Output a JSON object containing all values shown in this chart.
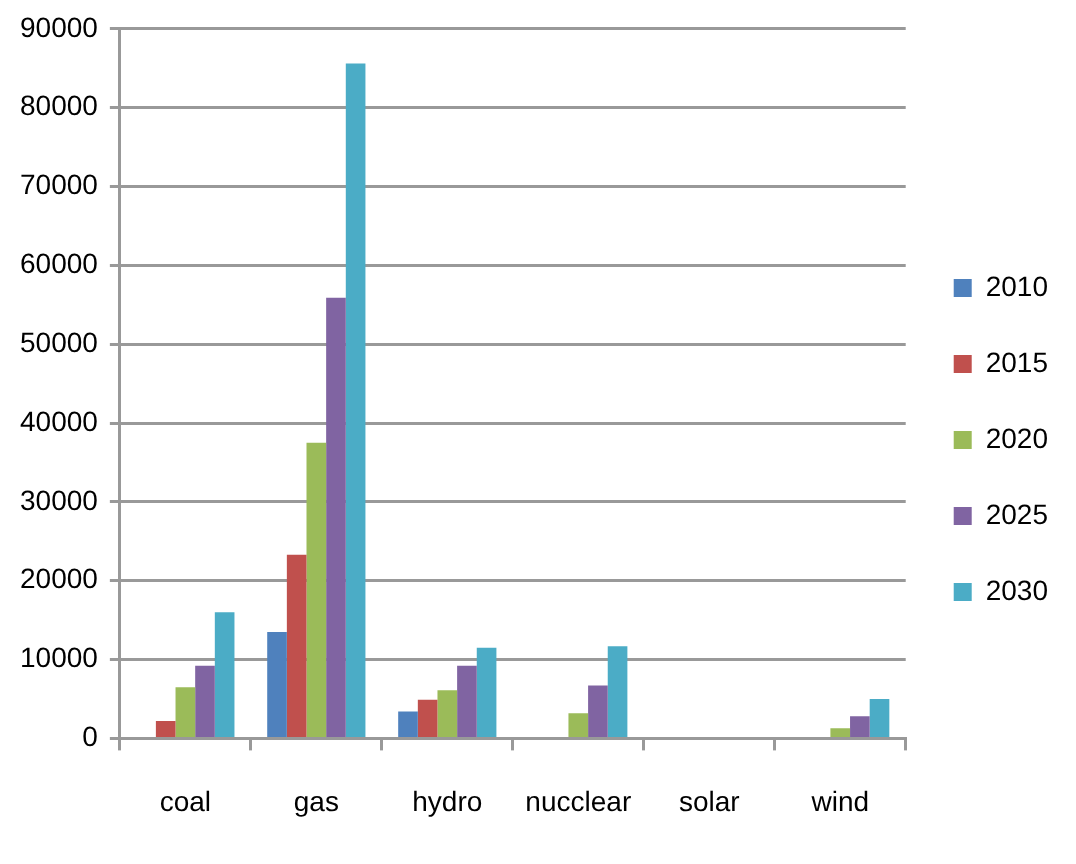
{
  "chart_data": {
    "type": "bar",
    "categories": [
      "coal",
      "gas",
      "hydro",
      "nucclear",
      "solar",
      "wind"
    ],
    "series": [
      {
        "name": "2010",
        "color": "#4f81bd",
        "values": [
          0,
          13500,
          3400,
          0,
          0,
          0
        ]
      },
      {
        "name": "2015",
        "color": "#c0504d",
        "values": [
          2200,
          23300,
          4900,
          0,
          0,
          0
        ]
      },
      {
        "name": "2020",
        "color": "#9bbb59",
        "values": [
          6500,
          37500,
          6100,
          3200,
          0,
          1300
        ]
      },
      {
        "name": "2025",
        "color": "#8064a2",
        "values": [
          9200,
          55900,
          9200,
          6700,
          0,
          2800
        ]
      },
      {
        "name": "2030",
        "color": "#4bacc6",
        "values": [
          16000,
          85600,
          11500,
          11700,
          0,
          5000
        ]
      }
    ],
    "ylim": [
      0,
      90000
    ],
    "yticks": [
      0,
      10000,
      20000,
      30000,
      40000,
      50000,
      60000,
      70000,
      80000,
      90000
    ],
    "grid": "y",
    "legend": "right"
  }
}
